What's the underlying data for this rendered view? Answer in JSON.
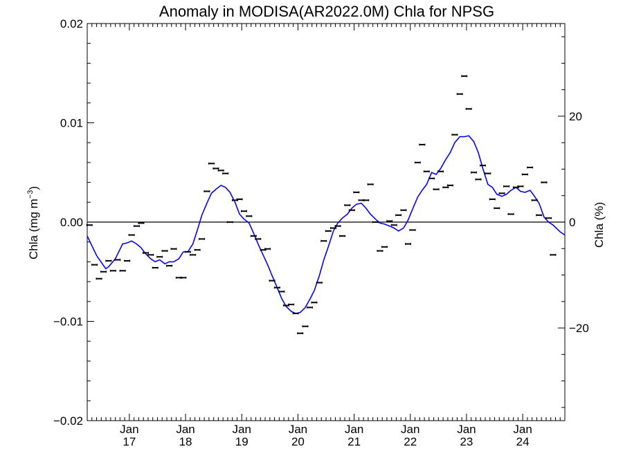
{
  "chart_data": {
    "type": "scatter",
    "title": "Anomaly in MODISA(AR2022.0M) Chla for NPSG",
    "ylabel_left": {
      "main": "Chla (mg m",
      "sup": "−3",
      "close": ")"
    },
    "ylabel_right": "Chla (%)",
    "x_axis": {
      "unit": "year",
      "range": [
        2016.25,
        2024.75
      ],
      "ticks": [
        {
          "value": 2017,
          "month": "Jan",
          "year": "17"
        },
        {
          "value": 2018,
          "month": "Jan",
          "year": "18"
        },
        {
          "value": 2019,
          "month": "Jan",
          "year": "19"
        },
        {
          "value": 2020,
          "month": "Jan",
          "year": "20"
        },
        {
          "value": 2021,
          "month": "Jan",
          "year": "21"
        },
        {
          "value": 2022,
          "month": "Jan",
          "year": "22"
        },
        {
          "value": 2023,
          "month": "Jan",
          "year": "23"
        },
        {
          "value": 2024,
          "month": "Jan",
          "year": "24"
        }
      ]
    },
    "y_left": {
      "range": [
        -0.02,
        0.02
      ],
      "ticks": [
        {
          "value": -0.02,
          "label": "−0.02"
        },
        {
          "value": -0.01,
          "label": "−0.01"
        },
        {
          "value": 0.0,
          "label": "0.00"
        },
        {
          "value": 0.01,
          "label": "0.01"
        },
        {
          "value": 0.02,
          "label": "0.02"
        }
      ]
    },
    "y_right": {
      "range": [
        -37.5,
        37.5
      ],
      "ticks": [
        {
          "value": -20,
          "label": "−20"
        },
        {
          "value": 0,
          "label": "0"
        },
        {
          "value": 20,
          "label": "20"
        }
      ]
    },
    "zero_line": true,
    "series": [
      {
        "kind": "points",
        "color": "#000000",
        "points": [
          [
            2016.29,
            -0.0003
          ],
          [
            2016.38,
            -0.0043
          ],
          [
            2016.46,
            -0.0057
          ],
          [
            2016.54,
            -0.005
          ],
          [
            2016.63,
            -0.0039
          ],
          [
            2016.71,
            -0.0049
          ],
          [
            2016.79,
            -0.0038
          ],
          [
            2016.88,
            -0.0049
          ],
          [
            2016.96,
            -0.0039
          ],
          [
            2017.04,
            -0.0013
          ],
          [
            2017.13,
            -0.0004
          ],
          [
            2017.21,
            -0.0001
          ],
          [
            2017.29,
            -0.0031
          ],
          [
            2017.38,
            -0.0033
          ],
          [
            2017.46,
            -0.0046
          ],
          [
            2017.54,
            -0.0035
          ],
          [
            2017.63,
            -0.0029
          ],
          [
            2017.71,
            -0.0044
          ],
          [
            2017.79,
            -0.0027
          ],
          [
            2017.88,
            -0.0056
          ],
          [
            2017.96,
            -0.0056
          ],
          [
            2018.04,
            -0.003
          ],
          [
            2018.13,
            -0.0033
          ],
          [
            2018.21,
            -0.0028
          ],
          [
            2018.29,
            -0.0017
          ],
          [
            2018.38,
            0.0031
          ],
          [
            2018.46,
            0.0059
          ],
          [
            2018.54,
            0.0054
          ],
          [
            2018.63,
            0.0052
          ],
          [
            2018.71,
            0.0049
          ],
          [
            2018.79,
            0.0
          ],
          [
            2018.88,
            0.0022
          ],
          [
            2018.96,
            0.0023
          ],
          [
            2019.04,
            0.0011
          ],
          [
            2019.13,
            0.0006
          ],
          [
            2019.21,
            -0.0014
          ],
          [
            2019.29,
            -0.0017
          ],
          [
            2019.38,
            -0.0028
          ],
          [
            2019.46,
            -0.0027
          ],
          [
            2019.54,
            -0.0059
          ],
          [
            2019.63,
            -0.0066
          ],
          [
            2019.71,
            -0.007
          ],
          [
            2019.79,
            -0.0084
          ],
          [
            2019.88,
            -0.0083
          ],
          [
            2019.96,
            -0.0092
          ],
          [
            2020.04,
            -0.0112
          ],
          [
            2020.13,
            -0.0105
          ],
          [
            2020.21,
            -0.0086
          ],
          [
            2020.29,
            -0.0081
          ],
          [
            2020.38,
            -0.0061
          ],
          [
            2020.46,
            -0.0019
          ],
          [
            2020.54,
            -0.0009
          ],
          [
            2020.63,
            -0.0006
          ],
          [
            2020.71,
            -0.0004
          ],
          [
            2020.79,
            -0.0014
          ],
          [
            2020.88,
            0.0017
          ],
          [
            2020.96,
            0.0012
          ],
          [
            2021.04,
            0.003
          ],
          [
            2021.13,
            0.0022
          ],
          [
            2021.21,
            0.0022
          ],
          [
            2021.29,
            0.0038
          ],
          [
            2021.38,
            0.0
          ],
          [
            2021.46,
            -0.0029
          ],
          [
            2021.54,
            -0.0025
          ],
          [
            2021.63,
            0.0001
          ],
          [
            2021.71,
            -0.0003
          ],
          [
            2021.79,
            0.0007
          ],
          [
            2021.88,
            0.0012
          ],
          [
            2021.96,
            -0.0022
          ],
          [
            2022.04,
            -0.0008
          ],
          [
            2022.13,
            0.006
          ],
          [
            2022.21,
            0.0078
          ],
          [
            2022.29,
            0.0051
          ],
          [
            2022.38,
            0.0044
          ],
          [
            2022.46,
            0.0033
          ],
          [
            2022.54,
            0.0051
          ],
          [
            2022.63,
            0.0035
          ],
          [
            2022.71,
            0.0037
          ],
          [
            2022.79,
            0.0088
          ],
          [
            2022.88,
            0.0129
          ],
          [
            2022.96,
            0.0147
          ],
          [
            2023.04,
            0.0114
          ],
          [
            2023.13,
            0.005
          ],
          [
            2023.21,
            0.0043
          ],
          [
            2023.29,
            0.0057
          ],
          [
            2023.38,
            0.0049
          ],
          [
            2023.46,
            0.0023
          ],
          [
            2023.54,
            0.0014
          ],
          [
            2023.63,
            0.0029
          ],
          [
            2023.71,
            0.0036
          ],
          [
            2023.79,
            0.0008
          ],
          [
            2023.88,
            0.0035
          ],
          [
            2023.96,
            0.0036
          ],
          [
            2024.04,
            0.0048
          ],
          [
            2024.13,
            0.0055
          ],
          [
            2024.21,
            0.0022
          ],
          [
            2024.29,
            0.0007
          ],
          [
            2024.38,
            0.004
          ],
          [
            2024.46,
            0.0004
          ],
          [
            2024.54,
            -0.0033
          ]
        ]
      },
      {
        "kind": "line",
        "color": "#0000ff",
        "points": [
          [
            2016.25,
            -0.0014
          ],
          [
            2016.42,
            -0.0034
          ],
          [
            2016.58,
            -0.0047
          ],
          [
            2016.63,
            -0.0045
          ],
          [
            2016.75,
            -0.0037
          ],
          [
            2016.88,
            -0.0022
          ],
          [
            2016.96,
            -0.0021
          ],
          [
            2017.04,
            -0.0019
          ],
          [
            2017.13,
            -0.0022
          ],
          [
            2017.21,
            -0.0026
          ],
          [
            2017.29,
            -0.0032
          ],
          [
            2017.38,
            -0.0037
          ],
          [
            2017.46,
            -0.004
          ],
          [
            2017.54,
            -0.0038
          ],
          [
            2017.63,
            -0.0042
          ],
          [
            2017.71,
            -0.004
          ],
          [
            2017.79,
            -0.004
          ],
          [
            2017.88,
            -0.0037
          ],
          [
            2017.96,
            -0.003
          ],
          [
            2018.04,
            -0.003
          ],
          [
            2018.13,
            -0.0022
          ],
          [
            2018.21,
            -0.0008
          ],
          [
            2018.29,
            0.0007
          ],
          [
            2018.38,
            0.0019
          ],
          [
            2018.46,
            0.0029
          ],
          [
            2018.54,
            0.0033
          ],
          [
            2018.63,
            0.0037
          ],
          [
            2018.71,
            0.0035
          ],
          [
            2018.79,
            0.003
          ],
          [
            2018.88,
            0.002
          ],
          [
            2018.96,
            0.0008
          ],
          [
            2019.04,
            0.0003
          ],
          [
            2019.13,
            -0.0001
          ],
          [
            2019.21,
            -0.0011
          ],
          [
            2019.29,
            -0.0022
          ],
          [
            2019.38,
            -0.0033
          ],
          [
            2019.46,
            -0.0043
          ],
          [
            2019.54,
            -0.0054
          ],
          [
            2019.63,
            -0.0066
          ],
          [
            2019.71,
            -0.0077
          ],
          [
            2019.79,
            -0.0085
          ],
          [
            2019.88,
            -0.009
          ],
          [
            2019.96,
            -0.0092
          ],
          [
            2020.04,
            -0.0091
          ],
          [
            2020.13,
            -0.0086
          ],
          [
            2020.21,
            -0.0078
          ],
          [
            2020.29,
            -0.0069
          ],
          [
            2020.38,
            -0.0054
          ],
          [
            2020.46,
            -0.0038
          ],
          [
            2020.54,
            -0.0025
          ],
          [
            2020.63,
            -0.0009
          ],
          [
            2020.71,
            -0.0001
          ],
          [
            2020.79,
            0.0004
          ],
          [
            2020.88,
            0.0008
          ],
          [
            2020.96,
            0.0014
          ],
          [
            2021.04,
            0.0018
          ],
          [
            2021.13,
            0.0019
          ],
          [
            2021.21,
            0.0014
          ],
          [
            2021.29,
            0.0008
          ],
          [
            2021.38,
            0.0003
          ],
          [
            2021.46,
            -0.0001
          ],
          [
            2021.54,
            -0.0002
          ],
          [
            2021.63,
            -0.0004
          ],
          [
            2021.71,
            -0.0006
          ],
          [
            2021.79,
            -0.0009
          ],
          [
            2021.88,
            -0.0006
          ],
          [
            2021.96,
            0.0002
          ],
          [
            2022.04,
            0.0013
          ],
          [
            2022.13,
            0.0025
          ],
          [
            2022.21,
            0.0032
          ],
          [
            2022.29,
            0.0038
          ],
          [
            2022.38,
            0.005
          ],
          [
            2022.46,
            0.0048
          ],
          [
            2022.54,
            0.0054
          ],
          [
            2022.63,
            0.0063
          ],
          [
            2022.71,
            0.007
          ],
          [
            2022.79,
            0.008
          ],
          [
            2022.88,
            0.0086
          ],
          [
            2022.96,
            0.0086
          ],
          [
            2023.04,
            0.0087
          ],
          [
            2023.13,
            0.0081
          ],
          [
            2023.21,
            0.007
          ],
          [
            2023.29,
            0.0054
          ],
          [
            2023.38,
            0.0038
          ],
          [
            2023.46,
            0.0035
          ],
          [
            2023.54,
            0.0028
          ],
          [
            2023.63,
            0.0026
          ],
          [
            2023.71,
            0.0028
          ],
          [
            2023.79,
            0.0032
          ],
          [
            2023.88,
            0.0035
          ],
          [
            2023.96,
            0.0031
          ],
          [
            2024.04,
            0.003
          ],
          [
            2024.13,
            0.0032
          ],
          [
            2024.21,
            0.0026
          ],
          [
            2024.29,
            0.0019
          ],
          [
            2024.38,
            0.0005
          ],
          [
            2024.46,
            0.0
          ],
          [
            2024.54,
            -0.0003
          ],
          [
            2024.67,
            -0.001
          ],
          [
            2024.75,
            -0.0013
          ]
        ]
      }
    ]
  }
}
